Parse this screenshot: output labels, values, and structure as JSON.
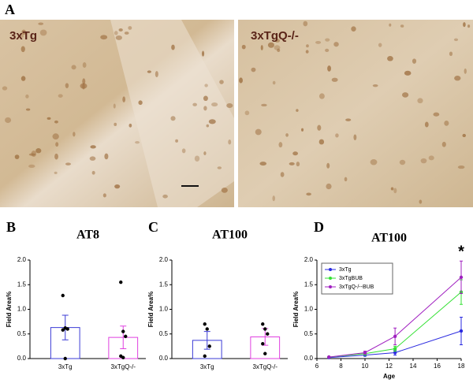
{
  "panel_a": {
    "label": "A",
    "images": [
      {
        "label": "3xTg"
      },
      {
        "label": "3xTgQ-/-"
      }
    ]
  },
  "chart_data": [
    {
      "type": "bar",
      "panel": "B",
      "title": "AT8",
      "y_label": "Field Area%",
      "categories": [
        "3xTg",
        "3xTgQ-/-"
      ],
      "values": [
        0.63,
        0.43
      ],
      "errors": [
        0.25,
        0.23
      ],
      "colors": [
        "#3b3bd6",
        "#e040e0"
      ],
      "points": [
        [
          1.28,
          0.62,
          0.6,
          0.58,
          0.0
        ],
        [
          1.55,
          0.55,
          0.45,
          0.05,
          0.02
        ]
      ],
      "ylim": [
        0,
        2
      ],
      "yticks": [
        {
          "value": 0,
          "label": "0.0"
        },
        {
          "value": 0.5,
          "label": "0.5"
        },
        {
          "value": 1,
          "label": "1.0"
        },
        {
          "value": 1.5,
          "label": "1.5"
        },
        {
          "value": 2,
          "label": "2.0"
        }
      ]
    },
    {
      "type": "bar",
      "panel": "C",
      "title": "AT100",
      "y_label": "Field Area%",
      "categories": [
        "3xTg",
        "3xTgQ-/-"
      ],
      "values": [
        0.37,
        0.44
      ],
      "errors": [
        0.18,
        0.17
      ],
      "colors": [
        "#3b3bd6",
        "#e040e0"
      ],
      "points": [
        [
          0.7,
          0.6,
          0.25,
          0.05
        ],
        [
          0.7,
          0.6,
          0.5,
          0.3,
          0.1
        ]
      ],
      "ylim": [
        0,
        2
      ],
      "yticks": [
        {
          "value": 0,
          "label": "0.0"
        },
        {
          "value": 0.5,
          "label": "0.5"
        },
        {
          "value": 1,
          "label": "1.0"
        },
        {
          "value": 1.5,
          "label": "1.5"
        },
        {
          "value": 2,
          "label": "2.0"
        }
      ]
    },
    {
      "type": "line",
      "panel": "D",
      "title": "AT100",
      "y_label": "Field Area%",
      "x_label": "Age",
      "annotation": "*",
      "legend": "upper left",
      "x": [
        7,
        10,
        12.5,
        18
      ],
      "series": [
        {
          "name": "3xTg",
          "color": "#2a2ae0",
          "values": [
            0.02,
            0.07,
            0.12,
            0.56
          ],
          "errors": [
            0.01,
            0.02,
            0.05,
            0.28
          ]
        },
        {
          "name": "3xTgBUB",
          "color": "#33e033",
          "values": [
            0.03,
            0.1,
            0.2,
            1.35
          ],
          "errors": [
            0.01,
            0.03,
            0.05,
            0.25
          ]
        },
        {
          "name": "3xTgQ-/--BUB",
          "color": "#a020c0",
          "values": [
            0.03,
            0.12,
            0.45,
            1.65
          ],
          "errors": [
            0.01,
            0.03,
            0.17,
            0.33
          ]
        }
      ],
      "xlim": [
        6,
        18
      ],
      "xticks": [
        6,
        8,
        10,
        12,
        14,
        16,
        18
      ],
      "ylim": [
        0,
        2
      ],
      "yticks": [
        {
          "value": 0,
          "label": "0.0"
        },
        {
          "value": 0.5,
          "label": "0.5"
        },
        {
          "value": 1,
          "label": "1.0"
        },
        {
          "value": 1.5,
          "label": "1.5"
        },
        {
          "value": 2,
          "label": "2.0"
        }
      ]
    }
  ]
}
